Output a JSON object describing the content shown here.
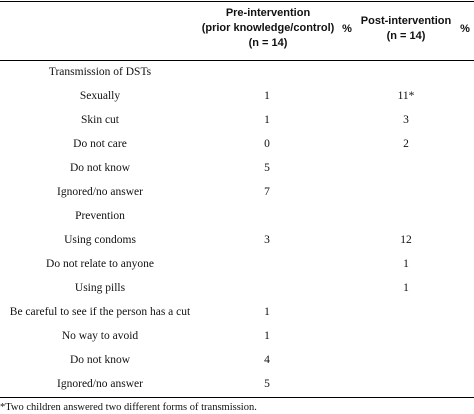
{
  "header": {
    "pre_line1": "Pre-intervention",
    "pre_line2": "(prior knowledge/control)",
    "pre_line3": "(n = 14)",
    "pct_label": "%",
    "post_line1": "Post-intervention",
    "post_line2": "(n = 14)",
    "pct_label2": "%"
  },
  "rows": [
    {
      "label": "Transmission of DSTs",
      "pre": "",
      "post": ""
    },
    {
      "label": "Sexually",
      "pre": "1",
      "post": "11*"
    },
    {
      "label": "Skin cut",
      "pre": "1",
      "post": "3"
    },
    {
      "label": "Do not care",
      "pre": "0",
      "post": "2"
    },
    {
      "label": "Do not know",
      "pre": "5",
      "post": ""
    },
    {
      "label": "Ignored/no answer",
      "pre": "7",
      "post": ""
    },
    {
      "label": "Prevention",
      "pre": "",
      "post": ""
    },
    {
      "label": "Using condoms",
      "pre": "3",
      "post": "12"
    },
    {
      "label": "Do not relate to anyone",
      "pre": "",
      "post": "1"
    },
    {
      "label": "Using pills",
      "pre": "",
      "post": "1"
    },
    {
      "label": "Be careful to see if the person has a cut",
      "pre": "1",
      "post": ""
    },
    {
      "label": "No way to avoid",
      "pre": "1",
      "post": ""
    },
    {
      "label": "Do not know",
      "pre": "4",
      "post": ""
    },
    {
      "label": "Ignored/no answer",
      "pre": "5",
      "post": ""
    }
  ],
  "footnote": "*Two children answered two different forms of transmission."
}
